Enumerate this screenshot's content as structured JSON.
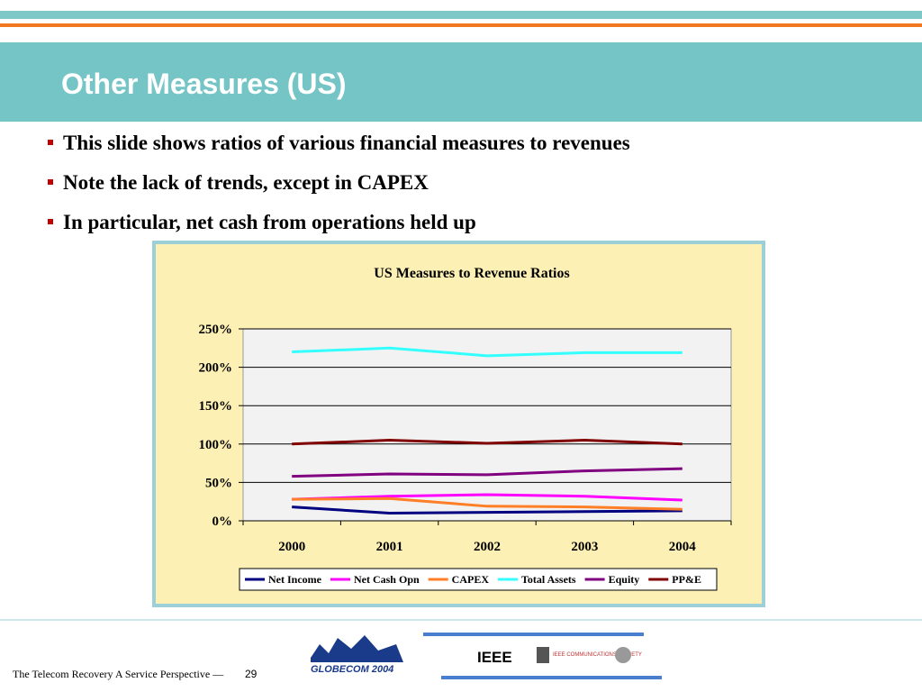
{
  "slide": {
    "title": "Other Measures (US)",
    "bullets": [
      "This slide shows ratios of various financial measures to revenues",
      "Note the lack of trends, except in CAPEX",
      "In particular, net cash from operations held up"
    ],
    "footer": {
      "text": "The Telecom Recovery A Service Perspective —",
      "page": "29"
    },
    "logos": [
      "GLOBECOM 2004",
      "IEEE",
      "IEEE COMMUNICATIONS SOCIETY"
    ]
  },
  "chart_data": {
    "type": "line",
    "title": "US Measures to Revenue Ratios",
    "categories": [
      "2000",
      "2001",
      "2002",
      "2003",
      "2004"
    ],
    "series": [
      {
        "name": "Net Income",
        "color": "#000080",
        "values": [
          18,
          10,
          11,
          12,
          13
        ]
      },
      {
        "name": "Net Cash Opn",
        "color": "#ff00ff",
        "values": [
          28,
          32,
          34,
          32,
          27
        ]
      },
      {
        "name": "CAPEX",
        "color": "#ff7f27",
        "values": [
          28,
          29,
          19,
          18,
          15
        ]
      },
      {
        "name": "Total Assets",
        "color": "#33ffff",
        "values": [
          220,
          225,
          215,
          219,
          219
        ]
      },
      {
        "name": "Equity",
        "color": "#800080",
        "values": [
          58,
          61,
          60,
          65,
          68
        ]
      },
      {
        "name": "PP&E",
        "color": "#800000",
        "values": [
          100,
          105,
          101,
          105,
          100
        ]
      }
    ],
    "ylim": [
      0,
      250
    ],
    "yticks": [
      {
        "value": 0,
        "label": "0%"
      },
      {
        "value": 50,
        "label": "50%"
      },
      {
        "value": 100,
        "label": "100%"
      },
      {
        "value": 150,
        "label": "150%"
      },
      {
        "value": 200,
        "label": "200%"
      },
      {
        "value": 250,
        "label": "250%"
      }
    ],
    "grid": true,
    "legend": "bottom"
  }
}
